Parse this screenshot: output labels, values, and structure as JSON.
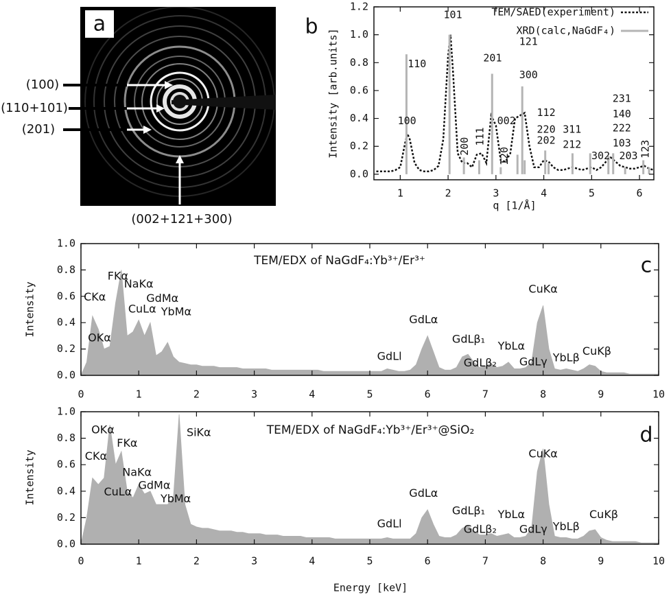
{
  "panel_a": {
    "label": "a",
    "annotations": [
      "(100)",
      "(110+101)",
      "(201)",
      "(002+121+300)"
    ]
  },
  "chart_data": [
    {
      "type": "line",
      "panel_label": "b",
      "xlabel": "q [1/Å]",
      "ylabel": "Intensity [arb.units]",
      "xlim": [
        0.45,
        6.3
      ],
      "xticks": [
        1,
        2,
        3,
        4,
        5,
        6
      ],
      "ylim": [
        -0.04,
        1.2
      ],
      "yticks": [
        {
          "value": 0,
          "label": "0.0"
        },
        0.2,
        0.4,
        0.6,
        0.8,
        {
          "value": 1,
          "label": "1.0"
        },
        1.2
      ],
      "series": [
        {
          "name": "TEM/SAED(experiment)",
          "color": "#111111",
          "style": "dotted",
          "x": [
            0.5,
            0.6,
            0.7,
            0.8,
            0.9,
            1.0,
            1.1,
            1.15,
            1.2,
            1.3,
            1.4,
            1.5,
            1.6,
            1.7,
            1.8,
            1.9,
            2.0,
            2.05,
            2.1,
            2.2,
            2.3,
            2.4,
            2.5,
            2.6,
            2.7,
            2.8,
            2.9,
            3.0,
            3.1,
            3.2,
            3.3,
            3.4,
            3.5,
            3.6,
            3.7,
            3.8,
            3.9,
            4.0,
            4.1,
            4.2,
            4.3,
            4.4,
            4.5,
            4.6,
            4.7,
            4.8,
            4.9,
            5.0,
            5.1,
            5.2,
            5.3,
            5.4,
            5.5,
            5.6,
            5.7,
            5.8,
            5.9,
            6.0,
            6.1,
            6.2,
            6.3
          ],
          "values": [
            0.02,
            0.02,
            0.02,
            0.02,
            0.03,
            0.05,
            0.22,
            0.29,
            0.25,
            0.08,
            0.03,
            0.02,
            0.02,
            0.03,
            0.06,
            0.25,
            0.85,
            1.0,
            0.75,
            0.15,
            0.08,
            0.08,
            0.05,
            0.14,
            0.15,
            0.08,
            0.42,
            0.35,
            0.1,
            0.09,
            0.15,
            0.4,
            0.42,
            0.44,
            0.2,
            0.05,
            0.05,
            0.1,
            0.09,
            0.05,
            0.03,
            0.03,
            0.04,
            0.05,
            0.04,
            0.03,
            0.04,
            0.05,
            0.03,
            0.05,
            0.09,
            0.12,
            0.09,
            0.06,
            0.05,
            0.04,
            0.04,
            0.05,
            0.06,
            0.04,
            0.03
          ]
        },
        {
          "name": "XRD(calc,NaGdF₄)",
          "color": "#b4b4b4",
          "style": "stick",
          "x": [
            1.13,
            2.03,
            2.33,
            2.65,
            2.92,
            3.1,
            3.45,
            3.55,
            3.6,
            4.03,
            4.1,
            4.6,
            4.97,
            5.35,
            5.45,
            5.7,
            6.08,
            6.2
          ],
          "values": [
            0.86,
            1.0,
            0.12,
            0.1,
            0.72,
            0.05,
            0.14,
            0.63,
            0.1,
            0.17,
            0.08,
            0.15,
            0.15,
            0.13,
            0.15,
            0.05,
            0.1,
            0.05
          ]
        }
      ],
      "annotations": [
        "101",
        "110",
        "100",
        "200",
        "111",
        "201",
        "121",
        "300",
        "120",
        "002",
        "112",
        "220",
        "202",
        "311",
        "212",
        "302",
        "231",
        "140",
        "222",
        "103",
        "203",
        "123"
      ]
    },
    {
      "type": "area",
      "panel_label": "c",
      "title": "TEM/EDX of NaGdF₄:Yb³⁺/Er³⁺",
      "ylabel": "Intensity",
      "xlim": [
        0,
        10
      ],
      "xticks": [
        0,
        1,
        2,
        3,
        4,
        5,
        6,
        7,
        8,
        9,
        10
      ],
      "ylim": [
        0,
        1
      ],
      "yticks": [
        {
          "value": 0,
          "label": "0.0"
        },
        0.2,
        0.4,
        0.6,
        0.8,
        {
          "value": 1,
          "label": "1.0"
        }
      ],
      "series": [
        {
          "color": "#b0b0b0",
          "x": [
            0,
            0.1,
            0.2,
            0.3,
            0.4,
            0.5,
            0.6,
            0.7,
            0.8,
            0.9,
            1,
            1.1,
            1.2,
            1.3,
            1.4,
            1.5,
            1.6,
            1.7,
            1.8,
            1.9,
            2,
            2.1,
            2.2,
            2.3,
            2.4,
            2.5,
            2.6,
            2.7,
            2.8,
            2.9,
            3,
            3.1,
            3.2,
            3.3,
            3.4,
            3.5,
            3.6,
            3.7,
            3.8,
            3.9,
            4,
            4.1,
            4.2,
            4.3,
            4.4,
            4.5,
            4.6,
            4.7,
            4.8,
            4.9,
            5,
            5.1,
            5.2,
            5.3,
            5.4,
            5.5,
            5.6,
            5.7,
            5.8,
            5.9,
            6,
            6.1,
            6.2,
            6.3,
            6.4,
            6.5,
            6.6,
            6.7,
            6.8,
            6.9,
            7,
            7.1,
            7.2,
            7.3,
            7.4,
            7.5,
            7.6,
            7.7,
            7.8,
            7.9,
            8,
            8.1,
            8.2,
            8.3,
            8.4,
            8.5,
            8.6,
            8.7,
            8.8,
            8.9,
            9,
            9.1,
            9.2,
            9.3,
            9.4,
            9.5,
            9.6,
            9.7,
            9.8,
            9.9,
            10
          ],
          "values": [
            0,
            0.1,
            0.45,
            0.35,
            0.2,
            0.22,
            0.55,
            0.8,
            0.3,
            0.33,
            0.42,
            0.3,
            0.4,
            0.15,
            0.18,
            0.25,
            0.14,
            0.1,
            0.09,
            0.08,
            0.08,
            0.07,
            0.07,
            0.07,
            0.06,
            0.06,
            0.06,
            0.06,
            0.05,
            0.05,
            0.05,
            0.05,
            0.05,
            0.04,
            0.04,
            0.04,
            0.04,
            0.04,
            0.04,
            0.04,
            0.04,
            0.04,
            0.03,
            0.03,
            0.03,
            0.03,
            0.03,
            0.03,
            0.03,
            0.03,
            0.03,
            0.03,
            0.03,
            0.05,
            0.04,
            0.03,
            0.03,
            0.04,
            0.08,
            0.2,
            0.3,
            0.18,
            0.06,
            0.04,
            0.04,
            0.06,
            0.14,
            0.16,
            0.1,
            0.06,
            0.07,
            0.09,
            0.06,
            0.07,
            0.1,
            0.05,
            0.05,
            0.06,
            0.1,
            0.4,
            0.53,
            0.2,
            0.05,
            0.04,
            0.05,
            0.04,
            0.03,
            0.05,
            0.08,
            0.07,
            0.03,
            0.02,
            0.02,
            0.02,
            0.02,
            0.01,
            0.01,
            0.01,
            0.01,
            0.01,
            0.01
          ]
        }
      ],
      "annotations": [
        "CKα",
        "OKα",
        "FKα",
        "CuLα",
        "NaKα",
        "GdMα",
        "YbMα",
        "GdLl",
        "GdLα",
        "GdLβ₁",
        "GdLβ₂",
        "YbLα",
        "GdLγ",
        "YbLβ",
        "CuKα",
        "CuKβ"
      ]
    },
    {
      "type": "area",
      "panel_label": "d",
      "title": "TEM/EDX of NaGdF₄:Yb³⁺/Er³⁺@SiO₂",
      "xlabel": "Energy [keV]",
      "ylabel": "Intensity",
      "xlim": [
        0,
        10
      ],
      "xticks": [
        0,
        1,
        2,
        3,
        4,
        5,
        6,
        7,
        8,
        9,
        10
      ],
      "ylim": [
        0,
        1
      ],
      "yticks": [
        {
          "value": 0,
          "label": "0.0"
        },
        0.2,
        0.4,
        0.6,
        0.8,
        {
          "value": 1,
          "label": "1.0"
        }
      ],
      "series": [
        {
          "color": "#b0b0b0",
          "x": [
            0,
            0.1,
            0.2,
            0.3,
            0.4,
            0.5,
            0.6,
            0.7,
            0.8,
            0.9,
            1,
            1.1,
            1.2,
            1.3,
            1.4,
            1.5,
            1.6,
            1.7,
            1.8,
            1.9,
            2,
            2.1,
            2.2,
            2.3,
            2.4,
            2.5,
            2.6,
            2.7,
            2.8,
            2.9,
            3,
            3.1,
            3.2,
            3.3,
            3.4,
            3.5,
            3.6,
            3.7,
            3.8,
            3.9,
            4,
            4.1,
            4.2,
            4.3,
            4.4,
            4.5,
            4.6,
            4.7,
            4.8,
            4.9,
            5,
            5.1,
            5.2,
            5.3,
            5.4,
            5.5,
            5.6,
            5.7,
            5.8,
            5.9,
            6,
            6.1,
            6.2,
            6.3,
            6.4,
            6.5,
            6.6,
            6.7,
            6.8,
            6.9,
            7,
            7.1,
            7.2,
            7.3,
            7.4,
            7.5,
            7.6,
            7.7,
            7.8,
            7.9,
            8,
            8.1,
            8.2,
            8.3,
            8.4,
            8.5,
            8.6,
            8.7,
            8.8,
            8.9,
            9,
            9.1,
            9.2,
            9.3,
            9.4,
            9.5,
            9.6,
            9.7,
            9.8,
            9.9,
            10
          ],
          "values": [
            0,
            0.2,
            0.5,
            0.45,
            0.5,
            0.9,
            0.6,
            0.7,
            0.4,
            0.35,
            0.45,
            0.38,
            0.4,
            0.3,
            0.3,
            0.3,
            0.35,
            0.98,
            0.3,
            0.15,
            0.13,
            0.12,
            0.12,
            0.11,
            0.1,
            0.1,
            0.1,
            0.09,
            0.09,
            0.08,
            0.08,
            0.08,
            0.07,
            0.07,
            0.07,
            0.06,
            0.06,
            0.06,
            0.06,
            0.05,
            0.05,
            0.05,
            0.05,
            0.05,
            0.04,
            0.04,
            0.04,
            0.04,
            0.04,
            0.04,
            0.04,
            0.04,
            0.04,
            0.05,
            0.04,
            0.04,
            0.04,
            0.04,
            0.08,
            0.2,
            0.26,
            0.15,
            0.06,
            0.05,
            0.05,
            0.07,
            0.12,
            0.14,
            0.1,
            0.07,
            0.07,
            0.08,
            0.06,
            0.07,
            0.08,
            0.05,
            0.05,
            0.06,
            0.12,
            0.55,
            0.72,
            0.3,
            0.06,
            0.05,
            0.05,
            0.04,
            0.04,
            0.06,
            0.1,
            0.11,
            0.05,
            0.03,
            0.02,
            0.02,
            0.02,
            0.02,
            0.02,
            0.01,
            0.01,
            0.01,
            0.01
          ]
        }
      ],
      "annotations": [
        "CKα",
        "OKα",
        "FKα",
        "NaKα",
        "GdMα",
        "CuLα",
        "YbMα",
        "SiKα",
        "GdLl",
        "GdLα",
        "GdLβ₁",
        "GdLβ₂",
        "YbLα",
        "GdLγ",
        "YbLβ",
        "CuKα",
        "CuKβ"
      ]
    }
  ]
}
